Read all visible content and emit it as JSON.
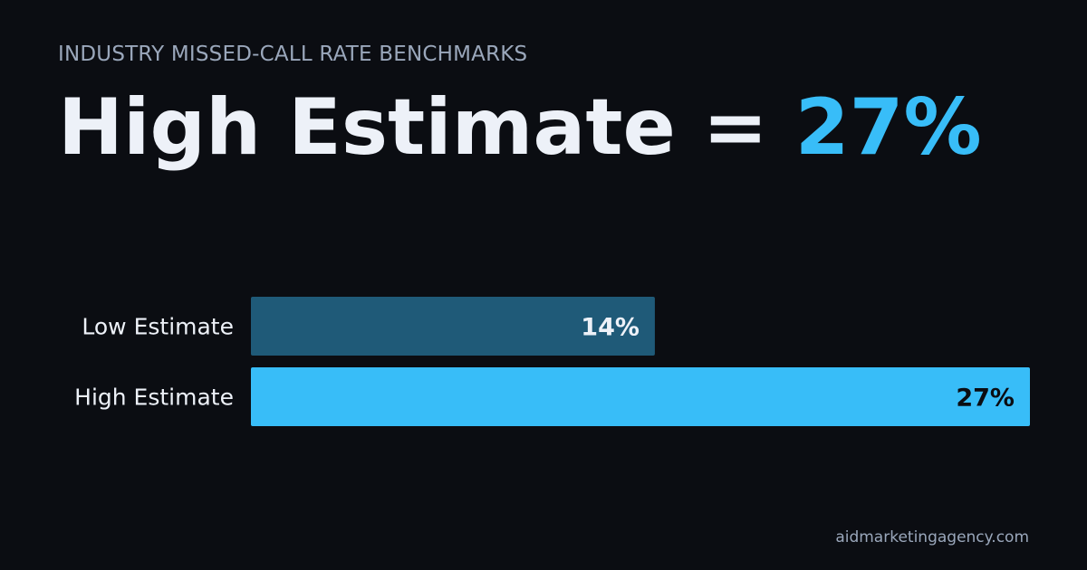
{
  "header": {
    "eyebrow": "INDUSTRY MISSED-CALL RATE BENCHMARKS",
    "headline_label": "High Estimate",
    "headline_equals": "=",
    "headline_value": "27%"
  },
  "footer": {
    "site": "aidmarketingagency.com"
  },
  "colors": {
    "background": "#0b0d12",
    "accent": "#38bdf8",
    "muted_bar": "#1f5a78",
    "text": "#edf1f8",
    "dark_text": "#0b0d12"
  },
  "chart_data": {
    "type": "bar",
    "orientation": "horizontal",
    "categories": [
      "Low Estimate",
      "High Estimate"
    ],
    "values": [
      14,
      27
    ],
    "value_labels": [
      "14%",
      "27%"
    ],
    "unit": "%",
    "xlim": [
      0,
      27
    ],
    "grid": false,
    "legend": "none"
  }
}
